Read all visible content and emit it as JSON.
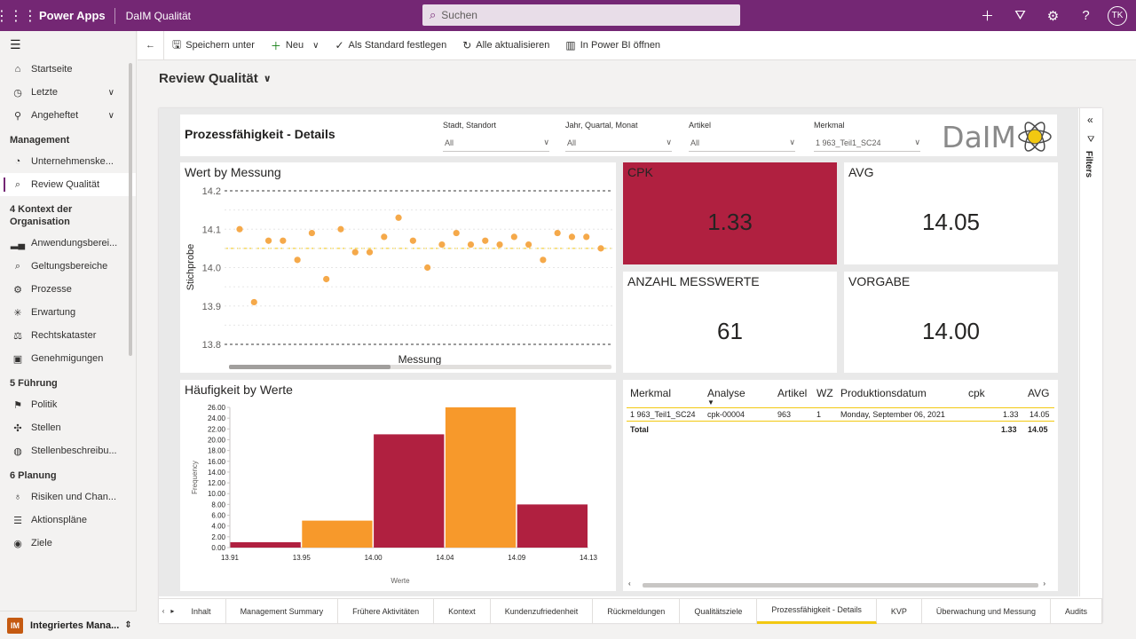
{
  "topbar": {
    "app_name": "Power Apps",
    "environment": "DaIM Qualität",
    "search_placeholder": "Suchen",
    "avatar_initials": "TK"
  },
  "nav": {
    "home": "Startseite",
    "recent": "Letzte",
    "pinned": "Angeheftet",
    "section_management": "Management",
    "management_items": [
      {
        "label": "Unternehmenske...",
        "icon": "gauge-icon"
      },
      {
        "label": "Review Qualität",
        "icon": "review-icon",
        "active": true
      }
    ],
    "section_context": "4 Kontext der Organisation",
    "context_items": [
      {
        "label": "Anwendungsberei...",
        "icon": "chart-icon"
      },
      {
        "label": "Geltungsbereiche",
        "icon": "search-doc-icon"
      },
      {
        "label": "Prozesse",
        "icon": "gear-icon"
      },
      {
        "label": "Erwartung",
        "icon": "sparkle-icon"
      },
      {
        "label": "Rechtskataster",
        "icon": "balance-icon"
      },
      {
        "label": "Genehmigungen",
        "icon": "approval-icon"
      }
    ],
    "section_leadership": "5 Führung",
    "leadership_items": [
      {
        "label": "Politik",
        "icon": "flag-icon"
      },
      {
        "label": "Stellen",
        "icon": "position-icon"
      },
      {
        "label": "Stellenbeschreibu...",
        "icon": "globe-icon"
      }
    ],
    "section_planning": "6 Planung",
    "planning_items": [
      {
        "label": "Risiken und Chan...",
        "icon": "bulb-icon"
      },
      {
        "label": "Aktionspläne",
        "icon": "list-icon"
      },
      {
        "label": "Ziele",
        "icon": "target-icon"
      }
    ],
    "area_badge": "IM",
    "area_name": "Integriertes Mana..."
  },
  "commands": {
    "save_as": "Speichern unter",
    "new": "Neu",
    "set_default": "Als Standard festlegen",
    "refresh_all": "Alle aktualisieren",
    "open_powerbi": "In Power BI öffnen"
  },
  "page_title": "Review Qualität",
  "report": {
    "title": "Prozessfähigkeit - Details",
    "slicers": [
      {
        "label": "Stadt, Standort",
        "value": "All"
      },
      {
        "label": "Jahr, Quartal, Monat",
        "value": "All"
      },
      {
        "label": "Artikel",
        "value": "All"
      },
      {
        "label": "Merkmal",
        "value": "1 963_Teil1_SC24"
      }
    ],
    "logo_text": "DaIM",
    "filters_label": "Filters",
    "kpis": {
      "cpk_label": "CPK",
      "cpk_value": "1.33",
      "avg_label": "AVG",
      "avg_value": "14.05",
      "count_label": "ANZAHL MESSWERTE",
      "count_value": "61",
      "target_label": "VORGABE",
      "target_value": "14.00"
    },
    "table": {
      "headers": [
        "Merkmal",
        "Analyse",
        "Artikel",
        "WZ",
        "Produktionsdatum",
        "cpk",
        "AVG"
      ],
      "rows": [
        [
          "1 963_Teil1_SC24",
          "cpk-00004",
          "963",
          "1",
          "Monday, September 06, 2021",
          "1.33",
          "14.05"
        ]
      ],
      "total": {
        "label": "Total",
        "cpk": "1.33",
        "avg": "14.05"
      }
    },
    "tabs": [
      "Inhalt",
      "Management Summary",
      "Frühere Aktivitäten",
      "Kontext",
      "Kundenzufriedenheit",
      "Rückmeldungen",
      "Qualitätsziele",
      "Prozessfähigkeit - Details",
      "KVP",
      "Überwachung und Messung",
      "Audits"
    ],
    "active_tab": "Prozessfähigkeit - Details"
  },
  "colors": {
    "topbar": "#742774",
    "crimson": "#b02040",
    "orange": "#f7992b",
    "point": "#f5a94a",
    "mean_line": "#f2c811"
  },
  "chart_data": [
    {
      "type": "scatter",
      "title": "Wert by Messung",
      "xlabel": "Messung",
      "ylabel": "Stichprobe",
      "ylim": [
        13.8,
        14.2
      ],
      "yticks": [
        "14.2",
        "14.1",
        "14.0",
        "13.9",
        "13.8"
      ],
      "reference_lines": [
        14.2,
        14.05,
        13.8
      ],
      "y": [
        14.1,
        13.91,
        14.07,
        14.07,
        14.02,
        14.09,
        13.97,
        14.1,
        14.04,
        14.04,
        14.08,
        14.13,
        14.07,
        14.0,
        14.06,
        14.09,
        14.06,
        14.07,
        14.06,
        14.08,
        14.06,
        14.02,
        14.09,
        14.08,
        14.08,
        14.05
      ]
    },
    {
      "type": "bar",
      "title": "Häufigkeit by Werte",
      "xlabel": "Werte",
      "ylabel": "Frequency",
      "ylim": [
        0,
        26
      ],
      "yticks": [
        "0.00",
        "2.00",
        "4.00",
        "6.00",
        "8.00",
        "10.00",
        "12.00",
        "14.00",
        "16.00",
        "18.00",
        "20.00",
        "22.00",
        "24.00",
        "26.00"
      ],
      "xticks": [
        "13.91",
        "13.95",
        "14.00",
        "14.04",
        "14.09",
        "14.13"
      ],
      "values": [
        1,
        5,
        21,
        26,
        8
      ]
    }
  ]
}
